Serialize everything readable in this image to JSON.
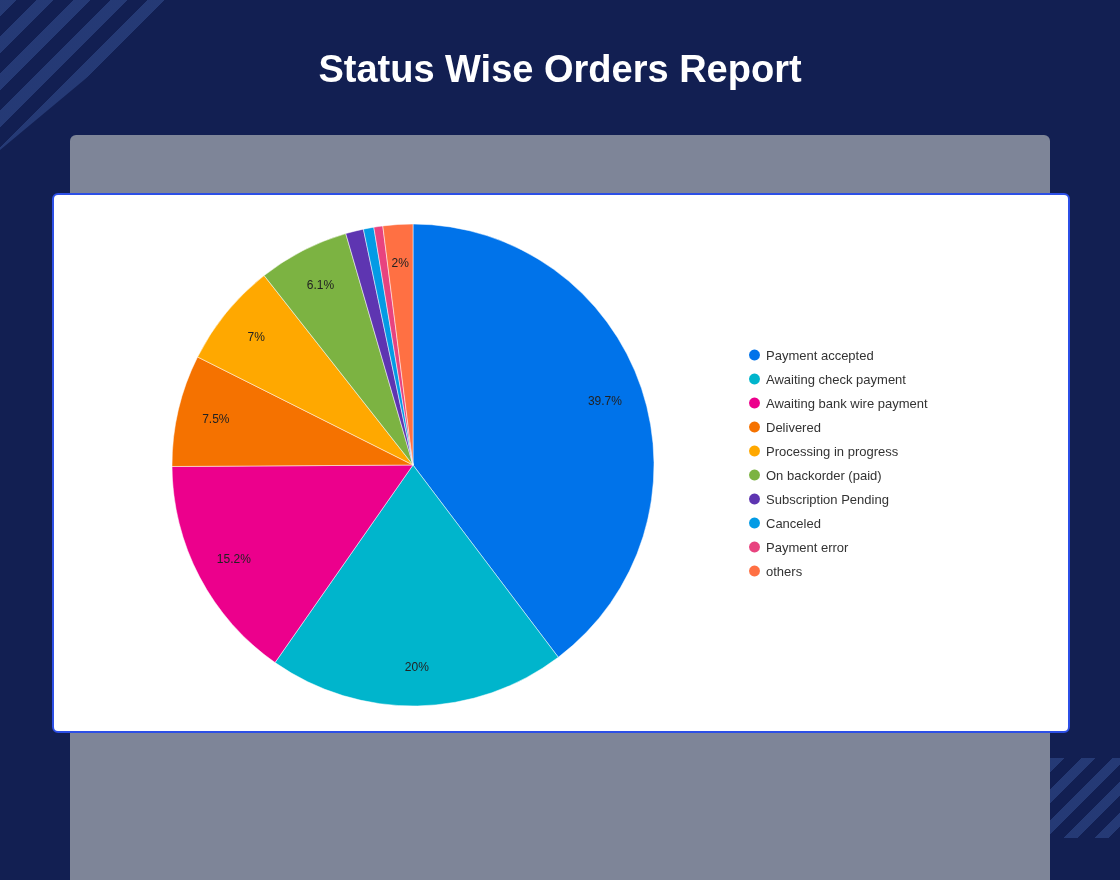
{
  "chart_data": {
    "type": "pie",
    "title": "Status Wise Orders Report",
    "categories": [
      "Payment accepted",
      "Awaiting check payment",
      "Awaiting bank wire payment",
      "Delivered",
      "Processing in progress",
      "On backorder (paid)",
      "Subscription Pending",
      "Canceled",
      "Payment error",
      "others"
    ],
    "values": [
      39.7,
      20,
      15.2,
      7.5,
      7,
      6.1,
      1.2,
      0.7,
      0.6,
      2
    ],
    "value_labels": [
      "39.7%",
      "20%",
      "15.2%",
      "7.5%",
      "7%",
      "6.1%",
      null,
      null,
      null,
      "2%"
    ],
    "colors": [
      "#0073ea",
      "#00b5cc",
      "#ec008c",
      "#f57200",
      "#ffa800",
      "#7cb342",
      "#5e35b1",
      "#039be5",
      "#e8437f",
      "#ff7043"
    ],
    "legend": "right"
  }
}
